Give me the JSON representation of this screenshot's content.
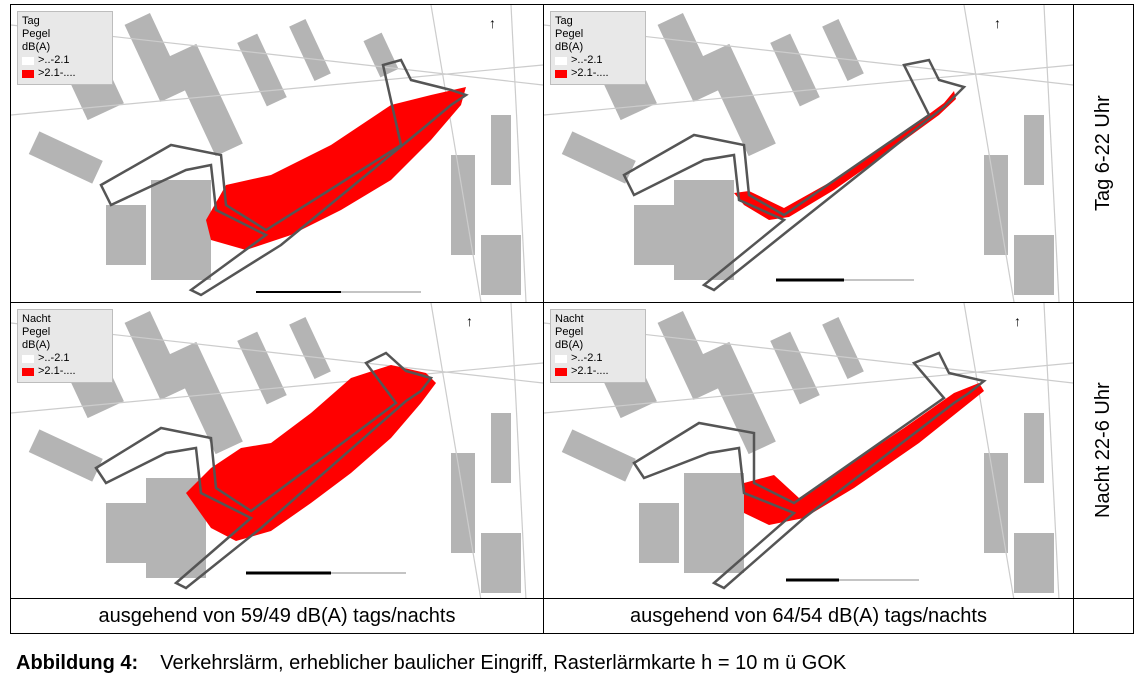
{
  "cells": [
    {
      "legend_title": [
        "Tag",
        "Pegel",
        "dB(A)"
      ],
      "legend_items": [
        ">..-2.1",
        ">2.1-...."
      ]
    },
    {
      "legend_title": [
        "Tag",
        "Pegel",
        "dB(A)"
      ],
      "legend_items": [
        ">..-2.1",
        ">2.1-...."
      ]
    },
    {
      "legend_title": [
        "Nacht",
        "Pegel",
        "dB(A)"
      ],
      "legend_items": [
        ">..-2.1",
        ">2.1-...."
      ]
    },
    {
      "legend_title": [
        "Nacht",
        "Pegel",
        "dB(A)"
      ],
      "legend_items": [
        ">..-2.1",
        ">2.1-...."
      ]
    }
  ],
  "row_labels": [
    "Tag 6-22 Uhr",
    "Nacht 22-6 Uhr"
  ],
  "column_captions": [
    "ausgehend von 59/49 dB(A) tags/nachts",
    "ausgehend von 64/54 dB(A) tags/nachts"
  ],
  "figure": {
    "label": "Abbildung 4:",
    "text": "Verkehrslärm, erheblicher baulicher Eingriff, Rasterlärmkarte h = 10 m ü GOK"
  },
  "colors": {
    "building": "#b4b4b4",
    "noise": "#ff0000",
    "outline": "#555555"
  }
}
